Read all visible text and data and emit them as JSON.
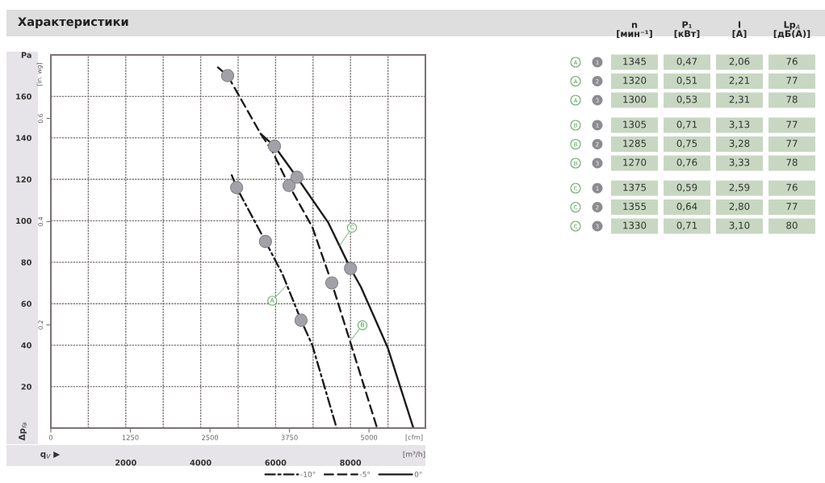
{
  "chart_data": [
    {
      "type": "line",
      "title": "Характеристики",
      "xlabel": "[m³/h]",
      "x2label": "[cfm]",
      "ylabel": "Δp$_{fa}$",
      "y2label": "[in. wg]",
      "annotations": [
        "q$_{V}$ ▶",
        {
          "text": "A",
          "x": 6300,
          "y": 69
        },
        {
          "text": "B",
          "x": 7990,
          "y": 42
        },
        {
          "text": "C",
          "x": 7710,
          "y": 88
        }
      ],
      "xlim": [
        0,
        10000
      ],
      "xticks": [
        {
          "value": 1000,
          "label": null
        },
        2000,
        {
          "value": 3000,
          "label": null
        },
        4000,
        {
          "value": 5000,
          "label": null
        },
        6000,
        {
          "value": 7000,
          "label": null
        },
        8000,
        {
          "value": 9000,
          "label": null
        }
      ],
      "x2lim": [
        0,
        5886
      ],
      "x2ticks": [
        0,
        1250,
        2500,
        3750,
        5000
      ],
      "ylim": [
        0,
        180
      ],
      "yticks": [
        20,
        40,
        60,
        80,
        100,
        120,
        140,
        160,
        {
          "value": 180,
          "label": "Pa"
        }
      ],
      "y2lim": [
        0,
        0.723
      ],
      "y2ticks": [
        0.2,
        0.4,
        0.6
      ],
      "grid": true,
      "legend": "bottom right",
      "series": [
        {
          "name": "-10°",
          "color": "#1a1a1a",
          "line_style": "dashdot",
          "x": [
            4830,
            4960,
            5730,
            6190,
            6680,
            6980,
            7630
          ],
          "values": [
            122,
            116,
            90,
            74,
            52,
            40,
            0
          ]
        },
        {
          "name": "-5°",
          "color": "#1a1a1a",
          "line_style": "dashed",
          "x": [
            4460,
            4720,
            5600,
            5900,
            6360,
            6980,
            7500,
            8020,
            8710
          ],
          "values": [
            174,
            170,
            142,
            134,
            117,
            97,
            70,
            40,
            0
          ]
        },
        {
          "name": "0°",
          "color": "#1a1a1a",
          "line_style": "solid",
          "x": [
            5600,
            5970,
            6570,
            7410,
            8000,
            8280,
            8990,
            9680
          ],
          "values": [
            142,
            136,
            121,
            99,
            77,
            68,
            39,
            0
          ]
        },
        {
          "type": "scatter",
          "color": "#a3a1a8",
          "marker": "circle",
          "x": [
            4960,
            5730,
            6680,
            4720,
            6360,
            7500,
            5970,
            6570,
            8000
          ],
          "values": [
            116,
            90,
            52,
            170,
            117,
            70,
            136,
            121,
            77
          ]
        }
      ]
    },
    {
      "type": "other",
      "categories": [
        "n\n[мин⁻¹]",
        "P₁\n[кВт]",
        "I\n[A]",
        "Lp$_{A}$\n[дБ(А)]"
      ],
      "y_categories": [
        "A",
        "A",
        "A",
        "B",
        "B",
        "B",
        "C",
        "C",
        "C"
      ],
      "y2_categories": [
        "1",
        "2",
        "3",
        "1",
        "2",
        "3",
        "1",
        "2",
        "3"
      ],
      "cell_labels": [
        [
          "1345",
          "0,47",
          "2,06",
          "76"
        ],
        [
          "1320",
          "0,51",
          "2,21",
          "77"
        ],
        [
          "1300",
          "0,53",
          "2,31",
          "78"
        ],
        [
          "1305",
          "0,71",
          "3,13",
          "77"
        ],
        [
          "1285",
          "0,75",
          "3,28",
          "77"
        ],
        [
          "1270",
          "0,76",
          "3,33",
          "78"
        ],
        [
          "1375",
          "0,59",
          "2,59",
          "76"
        ],
        [
          "1355",
          "0,64",
          "2,80",
          "77"
        ],
        [
          "1330",
          "0,71",
          "3,10",
          "80"
        ]
      ]
    }
  ]
}
